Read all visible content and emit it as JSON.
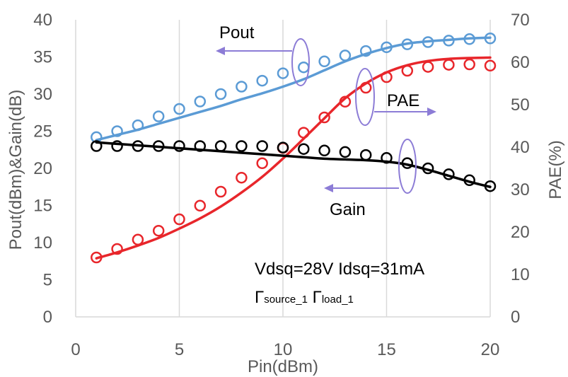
{
  "chart_data": {
    "type": "line",
    "xlabel": "Pin(dBm)",
    "ylabel": "Pout(dBm)&Gain(dB)",
    "y2label": "PAE(%)",
    "xlim": [
      0,
      20
    ],
    "ylim": [
      0,
      40
    ],
    "y2lim": [
      0,
      70
    ],
    "x_ticks": [
      "0",
      "5",
      "10",
      "15",
      "20"
    ],
    "y_ticks": [
      "0",
      "5",
      "10",
      "15",
      "20",
      "25",
      "30",
      "35",
      "40"
    ],
    "y2_ticks": [
      "0",
      "10",
      "20",
      "30",
      "40",
      "50",
      "60",
      "70"
    ],
    "grid": {
      "vertical": true,
      "horizontal": false
    },
    "series": [
      {
        "name": "Pout",
        "axis": "left",
        "color": "#5b9bd5",
        "measured": {
          "x": [
            1,
            2,
            3,
            4,
            5,
            6,
            7,
            8,
            9,
            10,
            11,
            12,
            13,
            14,
            15,
            16,
            17,
            18,
            19,
            20
          ],
          "y": [
            24.2,
            25.0,
            25.8,
            27.0,
            28.0,
            29.0,
            30.0,
            31.0,
            31.8,
            32.8,
            33.6,
            34.4,
            35.2,
            35.8,
            36.3,
            36.7,
            37.0,
            37.2,
            37.4,
            37.5
          ]
        },
        "simulated": {
          "x": [
            1,
            2,
            3,
            4,
            5,
            6,
            7,
            8,
            9,
            10,
            11,
            12,
            13,
            14,
            15,
            16,
            17,
            18,
            19,
            20
          ],
          "y": [
            23.8,
            24.5,
            25.2,
            26.0,
            26.8,
            27.6,
            28.4,
            29.3,
            30.1,
            31.0,
            32.0,
            33.2,
            34.4,
            35.4,
            36.2,
            36.8,
            37.1,
            37.3,
            37.5,
            37.6
          ]
        }
      },
      {
        "name": "PAE",
        "axis": "right",
        "color": "#e8262b",
        "measured": {
          "x": [
            1,
            2,
            3,
            4,
            5,
            6,
            7,
            8,
            9,
            10,
            11,
            12,
            13,
            14,
            15,
            16,
            17,
            18,
            19,
            20
          ],
          "y": [
            14.0,
            16.0,
            18.2,
            20.3,
            23.0,
            26.2,
            29.5,
            32.8,
            36.2,
            39.8,
            43.4,
            47.0,
            50.7,
            54.0,
            56.5,
            58.0,
            58.9,
            59.4,
            59.5,
            59.2
          ]
        },
        "simulated": {
          "x": [
            1,
            2,
            3,
            4,
            5,
            6,
            7,
            8,
            9,
            10,
            11,
            12,
            13,
            14,
            15,
            16,
            17,
            18,
            19,
            20
          ],
          "y": [
            13.8,
            15.2,
            16.8,
            18.6,
            20.8,
            23.2,
            26.0,
            29.3,
            33.0,
            37.3,
            42.0,
            46.8,
            51.5,
            55.0,
            57.6,
            59.3,
            60.3,
            60.8,
            61.0,
            61.1
          ]
        }
      },
      {
        "name": "Gain",
        "axis": "left",
        "color": "#000000",
        "measured": {
          "x": [
            1,
            2,
            3,
            4,
            5,
            6,
            7,
            8,
            9,
            10,
            11,
            12,
            13,
            14,
            15,
            16,
            17,
            18,
            19,
            20
          ],
          "y": [
            23.0,
            23.0,
            23.0,
            23.0,
            23.0,
            23.0,
            23.0,
            23.0,
            23.0,
            22.8,
            22.6,
            22.4,
            22.2,
            21.8,
            21.4,
            20.7,
            20.0,
            19.2,
            18.4,
            17.6
          ]
        },
        "simulated": {
          "x": [
            1,
            2,
            3,
            4,
            5,
            6,
            7,
            8,
            9,
            10,
            11,
            12,
            13,
            14,
            15,
            16,
            17,
            18,
            19,
            20
          ],
          "y": [
            23.5,
            23.3,
            23.1,
            22.9,
            22.7,
            22.5,
            22.3,
            22.1,
            21.9,
            21.7,
            21.5,
            21.3,
            21.2,
            21.1,
            20.9,
            20.5,
            19.8,
            19.0,
            18.2,
            17.5
          ]
        }
      }
    ],
    "annotations": {
      "pout_label": "Pout",
      "pae_label": "PAE",
      "gain_label": "Gain",
      "bias_text": "Vdsq=28V Idsq=31mA",
      "gamma_symbol": "Γ",
      "source_sub": "source_1",
      "load_sub": "load_1",
      "indicator_color": "#8c7cd6"
    }
  }
}
